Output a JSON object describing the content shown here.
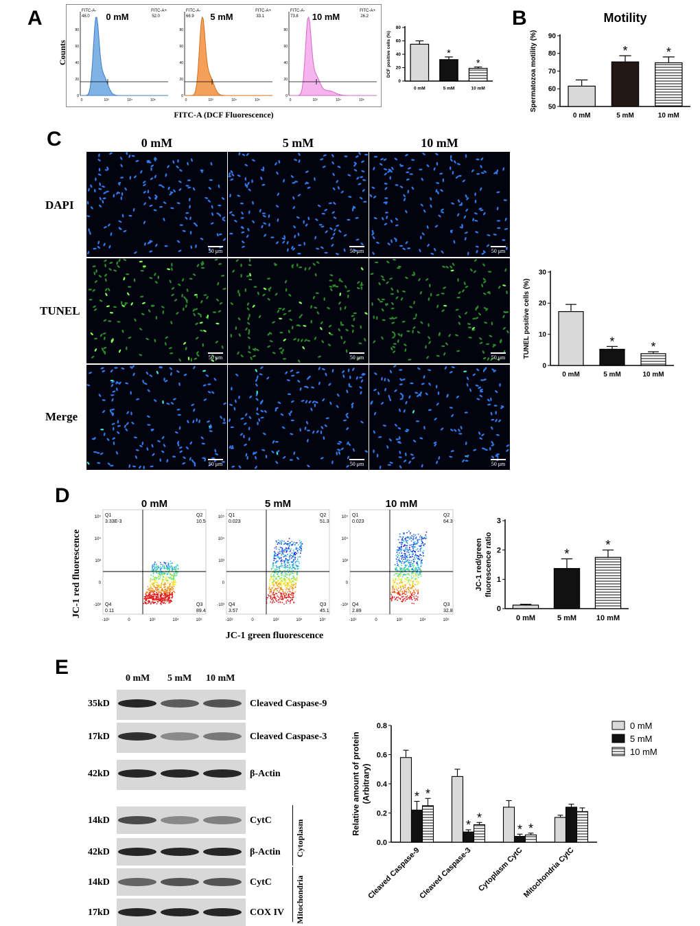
{
  "panels": {
    "A": {
      "letter": "A",
      "y_label": "Counts",
      "x_label": "FITC-A (DCF Fluorescence)",
      "histograms": [
        {
          "condition": "0 mM",
          "gate_neg": "FITC-A-",
          "gate_pos": "FITC-A+",
          "neg_value": "48.0",
          "pos_value": "52.0",
          "fill": "#7fb2e5",
          "stroke": "#3d7cc9"
        },
        {
          "condition": "5 mM",
          "gate_neg": "FITC-A-",
          "gate_pos": "FITC-A+",
          "neg_value": "66.9",
          "pos_value": "33.1",
          "fill": "#f5a05a",
          "stroke": "#d36f1d"
        },
        {
          "condition": "10 mM",
          "gate_neg": "FITC-A-",
          "gate_pos": "FITC-A+",
          "neg_value": "73.8",
          "pos_value": "26.2",
          "fill": "#f6b4ee",
          "stroke": "#d766c9"
        }
      ],
      "y_ticks": [
        "0",
        "20",
        "40",
        "60",
        "80"
      ],
      "x_ticks": [
        "0",
        "10³",
        "10⁴",
        "10⁵"
      ]
    },
    "B": {
      "letter": "B"
    },
    "C": {
      "letter": "C",
      "columns": [
        "0 mM",
        "5 mM",
        "10 mM"
      ],
      "rows": [
        "DAPI",
        "TUNEL",
        "Merge"
      ],
      "scale": "50 μm"
    },
    "D": {
      "letter": "D",
      "y_label": "JC-1 red fluorescence",
      "x_label": "JC-1 green fluorescence",
      "plots": [
        {
          "condition": "0 mM",
          "q1": "Q1",
          "q1v": "3.33E-3",
          "q2": "Q2",
          "q2v": "10.5",
          "q3": "Q3",
          "q3v": "89.4",
          "q4": "Q4",
          "q4v": "0.11"
        },
        {
          "condition": "5 mM",
          "q1": "Q1",
          "q1v": "0.023",
          "q2": "Q2",
          "q2v": "51.3",
          "q3": "Q3",
          "q3v": "45.1",
          "q4": "Q4",
          "q4v": "3.57"
        },
        {
          "condition": "10 mM",
          "q1": "Q1",
          "q1v": "0.023",
          "q2": "Q2",
          "q2v": "64.3",
          "q3": "Q3",
          "q3v": "32.8",
          "q4": "Q4",
          "q4v": "2.89"
        }
      ],
      "y_ticks": [
        "10⁵",
        "10⁴",
        "10³",
        "0",
        "-10³"
      ],
      "x_ticks": [
        "-10³",
        "0",
        "10³",
        "10⁴",
        "10⁵"
      ]
    },
    "E": {
      "letter": "E",
      "columns": [
        "0 mM",
        "5 mM",
        "10 mM"
      ],
      "blots": [
        {
          "kd": "35kD",
          "name": "Cleaved Caspase-9",
          "intensity": [
            0.9,
            0.6,
            0.65
          ]
        },
        {
          "kd": "17kD",
          "name": "Cleaved Caspase-3",
          "intensity": [
            0.85,
            0.35,
            0.45
          ]
        },
        {
          "kd": "42kD",
          "name": "β-Actin",
          "intensity": [
            0.9,
            0.9,
            0.9
          ]
        },
        {
          "kd": "14kD",
          "name": "CytC",
          "intensity": [
            0.7,
            0.35,
            0.4
          ]
        },
        {
          "kd": "42kD",
          "name": "β-Actin",
          "intensity": [
            0.9,
            0.9,
            0.9
          ]
        },
        {
          "kd": "14kD",
          "name": "CytC",
          "intensity": [
            0.55,
            0.65,
            0.65
          ]
        },
        {
          "kd": "17kD",
          "name": "COX IV",
          "intensity": [
            0.9,
            0.9,
            0.9
          ]
        }
      ],
      "fraction_labels": [
        "Cytoplasm",
        "Mitochondria"
      ]
    }
  },
  "chart_data": [
    {
      "id": "A-bar",
      "type": "bar",
      "categories": [
        "0 mM",
        "5 mM",
        "10 mM"
      ],
      "values": [
        55,
        32,
        19
      ],
      "errors": [
        5,
        4,
        2
      ],
      "significance": [
        "",
        "*",
        "*"
      ],
      "ylabel": "DCF positive cells (%)",
      "ylim": [
        0,
        80
      ],
      "yticks": [
        0,
        20,
        40,
        60,
        80
      ],
      "fills": [
        "#d9d9d9",
        "#111111",
        "stripes"
      ]
    },
    {
      "id": "B-bar",
      "type": "bar",
      "title": "Motility",
      "categories": [
        "0 mM",
        "5 mM",
        "10 mM"
      ],
      "values": [
        61.5,
        75.2,
        74.7
      ],
      "errors": [
        3.5,
        3.5,
        3.3
      ],
      "significance": [
        "",
        "*",
        "*"
      ],
      "ylabel": "Spermatozoa motility (%)",
      "ylim": [
        50,
        90
      ],
      "yticks": [
        50,
        60,
        70,
        80,
        90
      ],
      "fills": [
        "#d9d9d9",
        "#231816",
        "stripes"
      ]
    },
    {
      "id": "C-bar",
      "type": "bar",
      "categories": [
        "0 mM",
        "5 mM",
        "10 mM"
      ],
      "values": [
        17.3,
        5.2,
        3.8
      ],
      "errors": [
        2.3,
        0.9,
        0.6
      ],
      "significance": [
        "",
        "*",
        "*"
      ],
      "ylabel": "TUNEL positive cells (%)",
      "ylim": [
        0,
        30
      ],
      "yticks": [
        0,
        10,
        20,
        30
      ],
      "fills": [
        "#d9d9d9",
        "#111111",
        "stripes"
      ]
    },
    {
      "id": "D-bar",
      "type": "bar",
      "categories": [
        "0 mM",
        "5 mM",
        "10 mM"
      ],
      "values": [
        0.12,
        1.37,
        1.75
      ],
      "errors": [
        0.03,
        0.33,
        0.25
      ],
      "significance": [
        "",
        "*",
        "*"
      ],
      "ylabel": "JC-1 red/green fluorescence ratio",
      "ylabel_lines": [
        "JC-1 red/green",
        "fluorescence ratio"
      ],
      "ylim": [
        0,
        3
      ],
      "yticks": [
        0,
        1,
        2,
        3
      ],
      "fills": [
        "#d9d9d9",
        "#111111",
        "stripes"
      ]
    },
    {
      "id": "E-bar",
      "type": "bar",
      "categories": [
        "Cleaved Caspase-9",
        "Cleaved Caspase-3",
        "Cytoplasm CytC",
        "Mitochondria CytC"
      ],
      "series": [
        {
          "name": "0 mM",
          "values": [
            0.58,
            0.45,
            0.24,
            0.17
          ],
          "errors": [
            0.05,
            0.05,
            0.045,
            0.015
          ],
          "significance": [
            "",
            "",
            "",
            ""
          ],
          "fill": "#d9d9d9"
        },
        {
          "name": "5 mM",
          "values": [
            0.22,
            0.07,
            0.04,
            0.24
          ],
          "errors": [
            0.06,
            0.015,
            0.015,
            0.02
          ],
          "significance": [
            "*",
            "*",
            "*",
            ""
          ],
          "fill": "#111111"
        },
        {
          "name": "10 mM",
          "values": [
            0.25,
            0.12,
            0.05,
            0.21
          ],
          "errors": [
            0.05,
            0.015,
            0.012,
            0.025
          ],
          "significance": [
            "*",
            "*",
            "*",
            ""
          ],
          "fill": "stripes"
        }
      ],
      "ylabel_lines": [
        "Relative amount of protein",
        "(Arbitrary)"
      ],
      "ylim": [
        0,
        0.8
      ],
      "yticks": [
        "0.0",
        "0.2",
        "0.4",
        "0.6",
        "0.8"
      ],
      "legend": "top-right"
    }
  ]
}
